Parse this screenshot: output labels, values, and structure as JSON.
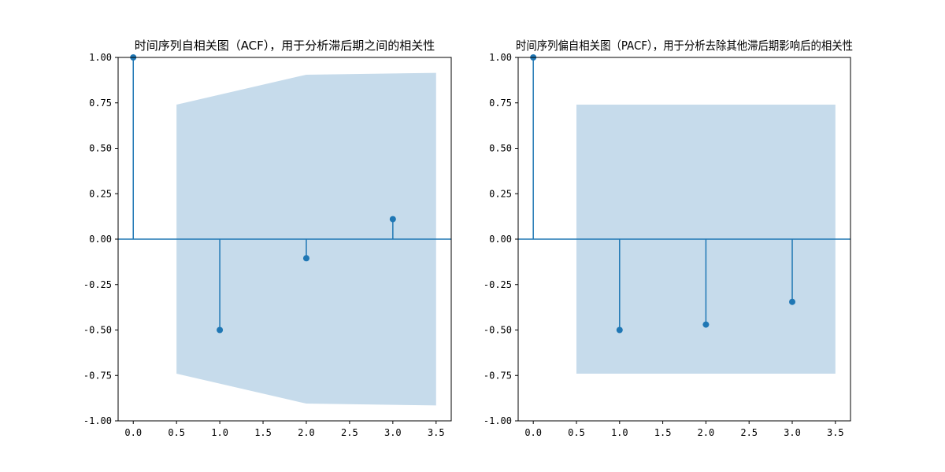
{
  "colors": {
    "stem": "#1f77b4",
    "band": "#c6dbeb",
    "axis": "#000000",
    "background": "#ffffff"
  },
  "chart_data": [
    {
      "type": "stem",
      "title": "时间序列自相关图（ACF），用于分析滞后期之间的相关性",
      "xlabel": "",
      "ylabel": "",
      "xlim": [
        -0.175,
        3.675
      ],
      "ylim": [
        -1.0,
        1.0
      ],
      "xticks": [
        0.0,
        0.5,
        1.0,
        1.5,
        2.0,
        2.5,
        3.0,
        3.5
      ],
      "xtick_labels": [
        "0.0",
        "0.5",
        "1.0",
        "1.5",
        "2.0",
        "2.5",
        "3.0",
        "3.5"
      ],
      "yticks": [
        1.0,
        0.75,
        0.5,
        0.25,
        0.0,
        -0.25,
        -0.5,
        -0.75,
        -1.0
      ],
      "ytick_labels": [
        "1.00",
        "0.75",
        "0.50",
        "0.25",
        "0.00",
        "-0.25",
        "-0.50",
        "-0.75",
        "-1.00"
      ],
      "grid": false,
      "x": [
        0,
        1,
        2,
        3
      ],
      "values": [
        1.0,
        -0.5,
        -0.105,
        0.11
      ],
      "confidence_band": {
        "x": [
          0.5,
          2.0,
          3.5
        ],
        "upper": [
          0.74,
          0.905,
          0.915
        ],
        "lower": [
          -0.74,
          -0.905,
          -0.915
        ]
      }
    },
    {
      "type": "stem",
      "title": "时间序列偏自相关图（PACF），用于分析去除其他滞后期影响后的相关性",
      "xlabel": "",
      "ylabel": "",
      "xlim": [
        -0.175,
        3.675
      ],
      "ylim": [
        -1.0,
        1.0
      ],
      "xticks": [
        0.0,
        0.5,
        1.0,
        1.5,
        2.0,
        2.5,
        3.0,
        3.5
      ],
      "xtick_labels": [
        "0.0",
        "0.5",
        "1.0",
        "1.5",
        "2.0",
        "2.5",
        "3.0",
        "3.5"
      ],
      "yticks": [
        1.0,
        0.75,
        0.5,
        0.25,
        0.0,
        -0.25,
        -0.5,
        -0.75,
        -1.0
      ],
      "ytick_labels": [
        "1.00",
        "0.75",
        "0.50",
        "0.25",
        "0.00",
        "-0.25",
        "-0.50",
        "-0.75",
        "-1.00"
      ],
      "grid": false,
      "x": [
        0,
        1,
        2,
        3
      ],
      "values": [
        1.0,
        -0.5,
        -0.47,
        -0.345
      ],
      "confidence_band": {
        "x": [
          0.5,
          3.5
        ],
        "upper": [
          0.74,
          0.74
        ],
        "lower": [
          -0.74,
          -0.74
        ]
      }
    }
  ]
}
